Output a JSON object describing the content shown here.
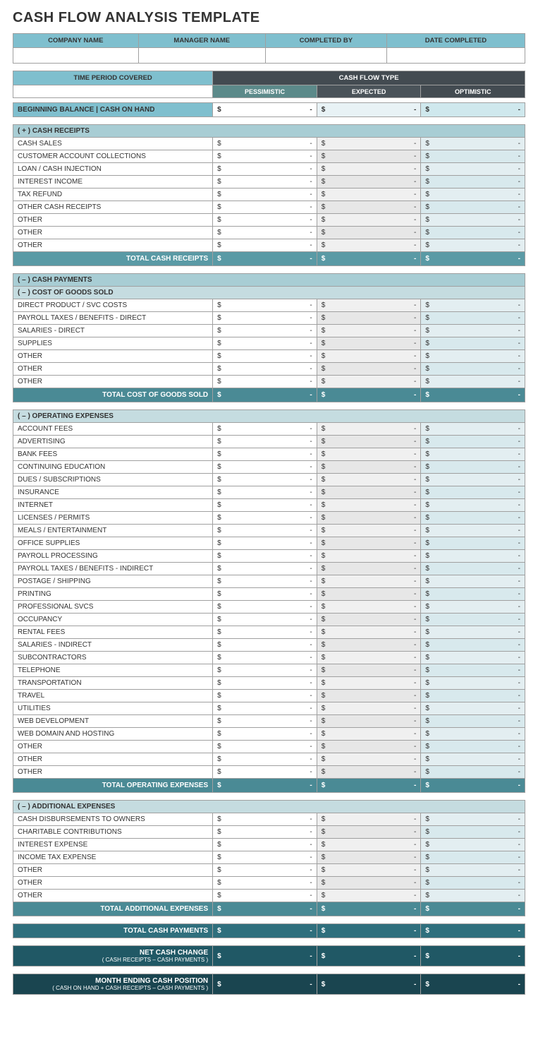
{
  "title": "CASH FLOW ANALYSIS TEMPLATE",
  "colors": {
    "hdr_light": "#7fbfce",
    "hdr_dark": "#434b51",
    "pes": "#5c8a8a",
    "exp": "#4a5359",
    "opt": "#434b51",
    "sec": "#a8cdd4",
    "sub": "#c5dce0",
    "total_light": "#5a9aa5",
    "total_med": "#4a8a95",
    "total_dark": "#2f6f7d",
    "total_vdark": "#205865",
    "total_deep": "#1a4550",
    "col2_bg": "#f0f0f0",
    "col3_bg": "#e3eef1"
  },
  "info_headers": [
    "COMPANY NAME",
    "MANAGER NAME",
    "COMPLETED BY",
    "DATE COMPLETED"
  ],
  "info_values": [
    "",
    "",
    "",
    ""
  ],
  "tp": {
    "time_period_label": "TIME PERIOD COVERED",
    "cash_flow_type_label": "CASH FLOW TYPE",
    "types": [
      "PESSIMISTIC",
      "EXPECTED",
      "OPTIMISTIC"
    ],
    "time_period_value": ""
  },
  "currency": "$",
  "dash": "-",
  "beginning_balance": {
    "label": "BEGINNING BALANCE  |  CASH ON HAND",
    "pes": "-",
    "exp": "-",
    "opt": "-"
  },
  "sections": [
    {
      "header": "( + )  CASH RECEIPTS",
      "rows": [
        {
          "label": "CASH SALES",
          "pes": "-",
          "exp": "-",
          "opt": "-"
        },
        {
          "label": "CUSTOMER ACCOUNT COLLECTIONS",
          "pes": "-",
          "exp": "-",
          "opt": "-"
        },
        {
          "label": "LOAN / CASH INJECTION",
          "pes": "-",
          "exp": "-",
          "opt": "-"
        },
        {
          "label": "INTEREST INCOME",
          "pes": "-",
          "exp": "-",
          "opt": "-"
        },
        {
          "label": "TAX REFUND",
          "pes": "-",
          "exp": "-",
          "opt": "-"
        },
        {
          "label": "OTHER CASH RECEIPTS",
          "pes": "-",
          "exp": "-",
          "opt": "-"
        },
        {
          "label": "OTHER",
          "pes": "-",
          "exp": "-",
          "opt": "-"
        },
        {
          "label": "OTHER",
          "pes": "-",
          "exp": "-",
          "opt": "-"
        },
        {
          "label": "OTHER",
          "pes": "-",
          "exp": "-",
          "opt": "-"
        }
      ],
      "total": {
        "label": "TOTAL CASH RECEIPTS",
        "pes": "-",
        "exp": "-",
        "opt": "-",
        "tone": "t-light"
      }
    },
    {
      "header": "( – )  CASH PAYMENTS",
      "sub": "( – )  COST OF GOODS SOLD",
      "rows": [
        {
          "label": "DIRECT PRODUCT / SVC COSTS",
          "pes": "-",
          "exp": "-",
          "opt": "-"
        },
        {
          "label": "PAYROLL TAXES / BENEFITS - DIRECT",
          "pes": "-",
          "exp": "-",
          "opt": "-"
        },
        {
          "label": "SALARIES - DIRECT",
          "pes": "-",
          "exp": "-",
          "opt": "-"
        },
        {
          "label": "SUPPLIES",
          "pes": "-",
          "exp": "-",
          "opt": "-"
        },
        {
          "label": "OTHER",
          "pes": "-",
          "exp": "-",
          "opt": "-"
        },
        {
          "label": "OTHER",
          "pes": "-",
          "exp": "-",
          "opt": "-"
        },
        {
          "label": "OTHER",
          "pes": "-",
          "exp": "-",
          "opt": "-"
        }
      ],
      "total": {
        "label": "TOTAL COST OF GOODS SOLD",
        "pes": "-",
        "exp": "-",
        "opt": "-",
        "tone": "t-med"
      }
    },
    {
      "sub": "( – )  OPERATING EXPENSES",
      "rows": [
        {
          "label": "ACCOUNT FEES",
          "pes": "-",
          "exp": "-",
          "opt": "-"
        },
        {
          "label": "ADVERTISING",
          "pes": "-",
          "exp": "-",
          "opt": "-"
        },
        {
          "label": "BANK FEES",
          "pes": "-",
          "exp": "-",
          "opt": "-"
        },
        {
          "label": "CONTINUING EDUCATION",
          "pes": "-",
          "exp": "-",
          "opt": "-"
        },
        {
          "label": "DUES / SUBSCRIPTIONS",
          "pes": "-",
          "exp": "-",
          "opt": "-"
        },
        {
          "label": "INSURANCE",
          "pes": "-",
          "exp": "-",
          "opt": "-"
        },
        {
          "label": "INTERNET",
          "pes": "-",
          "exp": "-",
          "opt": "-"
        },
        {
          "label": "LICENSES / PERMITS",
          "pes": "-",
          "exp": "-",
          "opt": "-"
        },
        {
          "label": "MEALS / ENTERTAINMENT",
          "pes": "-",
          "exp": "-",
          "opt": "-"
        },
        {
          "label": "OFFICE SUPPLIES",
          "pes": "-",
          "exp": "-",
          "opt": "-"
        },
        {
          "label": "PAYROLL PROCESSING",
          "pes": "-",
          "exp": "-",
          "opt": "-"
        },
        {
          "label": "PAYROLL TAXES / BENEFITS - INDIRECT",
          "pes": "-",
          "exp": "-",
          "opt": "-"
        },
        {
          "label": "POSTAGE / SHIPPING",
          "pes": "-",
          "exp": "-",
          "opt": "-"
        },
        {
          "label": "PRINTING",
          "pes": "-",
          "exp": "-",
          "opt": "-"
        },
        {
          "label": "PROFESSIONAL SVCS",
          "pes": "-",
          "exp": "-",
          "opt": "-"
        },
        {
          "label": "OCCUPANCY",
          "pes": "-",
          "exp": "-",
          "opt": "-"
        },
        {
          "label": "RENTAL FEES",
          "pes": "-",
          "exp": "-",
          "opt": "-"
        },
        {
          "label": "SALARIES - INDIRECT",
          "pes": "-",
          "exp": "-",
          "opt": "-"
        },
        {
          "label": "SUBCONTRACTORS",
          "pes": "-",
          "exp": "-",
          "opt": "-"
        },
        {
          "label": "TELEPHONE",
          "pes": "-",
          "exp": "-",
          "opt": "-"
        },
        {
          "label": "TRANSPORTATION",
          "pes": "-",
          "exp": "-",
          "opt": "-"
        },
        {
          "label": "TRAVEL",
          "pes": "-",
          "exp": "-",
          "opt": "-"
        },
        {
          "label": "UTILITIES",
          "pes": "-",
          "exp": "-",
          "opt": "-"
        },
        {
          "label": "WEB DEVELOPMENT",
          "pes": "-",
          "exp": "-",
          "opt": "-"
        },
        {
          "label": "WEB DOMAIN AND HOSTING",
          "pes": "-",
          "exp": "-",
          "opt": "-"
        },
        {
          "label": "OTHER",
          "pes": "-",
          "exp": "-",
          "opt": "-"
        },
        {
          "label": "OTHER",
          "pes": "-",
          "exp": "-",
          "opt": "-"
        },
        {
          "label": "OTHER",
          "pes": "-",
          "exp": "-",
          "opt": "-"
        }
      ],
      "total": {
        "label": "TOTAL OPERATING EXPENSES",
        "pes": "-",
        "exp": "-",
        "opt": "-",
        "tone": "t-med"
      }
    },
    {
      "sub": "( – )  ADDITIONAL EXPENSES",
      "rows": [
        {
          "label": "CASH DISBURSEMENTS TO OWNERS",
          "pes": "-",
          "exp": "-",
          "opt": "-"
        },
        {
          "label": "CHARITABLE CONTRIBUTIONS",
          "pes": "-",
          "exp": "-",
          "opt": "-"
        },
        {
          "label": "INTEREST EXPENSE",
          "pes": "-",
          "exp": "-",
          "opt": "-"
        },
        {
          "label": "INCOME TAX EXPENSE",
          "pes": "-",
          "exp": "-",
          "opt": "-"
        },
        {
          "label": "OTHER",
          "pes": "-",
          "exp": "-",
          "opt": "-"
        },
        {
          "label": "OTHER",
          "pes": "-",
          "exp": "-",
          "opt": "-"
        },
        {
          "label": "OTHER",
          "pes": "-",
          "exp": "-",
          "opt": "-"
        }
      ],
      "total": {
        "label": "TOTAL ADDITIONAL EXPENSES",
        "pes": "-",
        "exp": "-",
        "opt": "-",
        "tone": "t-med"
      }
    }
  ],
  "grand_totals": [
    {
      "label": "TOTAL CASH PAYMENTS",
      "sub": "",
      "pes": "-",
      "exp": "-",
      "opt": "-",
      "tone": "t-dark"
    },
    {
      "label": "NET CASH CHANGE",
      "sub": "( CASH RECEIPTS – CASH PAYMENTS )",
      "pes": "-",
      "exp": "-",
      "opt": "-",
      "tone": "t-vdark"
    },
    {
      "label": "MONTH ENDING CASH POSITION",
      "sub": "( CASH ON HAND + CASH RECEIPTS – CASH PAYMENTS )",
      "pes": "-",
      "exp": "-",
      "opt": "-",
      "tone": "t-deep"
    }
  ]
}
